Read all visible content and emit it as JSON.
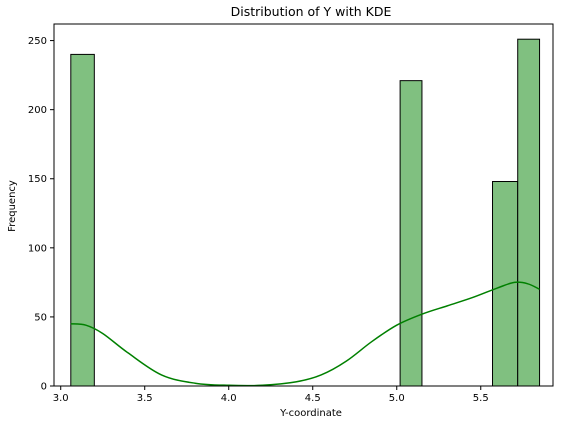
{
  "chart_data": {
    "type": "bar",
    "title": "Distribution of Y with KDE",
    "xlabel": "Y-coordinate",
    "ylabel": "Frequency",
    "xlim": [
      2.96,
      5.93
    ],
    "ylim": [
      0,
      262
    ],
    "xticks": [
      3.0,
      3.5,
      4.0,
      4.5,
      5.0,
      5.5
    ],
    "xtick_labels": [
      "3.0",
      "3.5",
      "4.0",
      "4.5",
      "5.0",
      "5.5"
    ],
    "yticks": [
      0,
      50,
      100,
      150,
      200,
      250
    ],
    "ytick_labels": [
      "0",
      "50",
      "100",
      "150",
      "200",
      "250"
    ],
    "grid": false,
    "bar_color": "#80c080",
    "bar_edge_color": "#000000",
    "bins": [
      {
        "x0": 3.06,
        "x1": 3.2,
        "count": 240
      },
      {
        "x0": 5.02,
        "x1": 5.15,
        "count": 221
      },
      {
        "x0": 5.57,
        "x1": 5.72,
        "count": 148
      },
      {
        "x0": 5.72,
        "x1": 5.85,
        "count": 251
      }
    ],
    "kde": {
      "color": "#008000",
      "x": [
        3.06,
        3.15,
        3.25,
        3.4,
        3.6,
        3.8,
        4.0,
        4.2,
        4.4,
        4.55,
        4.7,
        4.85,
        5.0,
        5.15,
        5.3,
        5.45,
        5.6,
        5.7,
        5.78,
        5.85
      ],
      "y": [
        45,
        44,
        38,
        24,
        8,
        2,
        0.5,
        0.5,
        3,
        8,
        18,
        32,
        44,
        52,
        58,
        64,
        71,
        75,
        74,
        70
      ]
    }
  }
}
